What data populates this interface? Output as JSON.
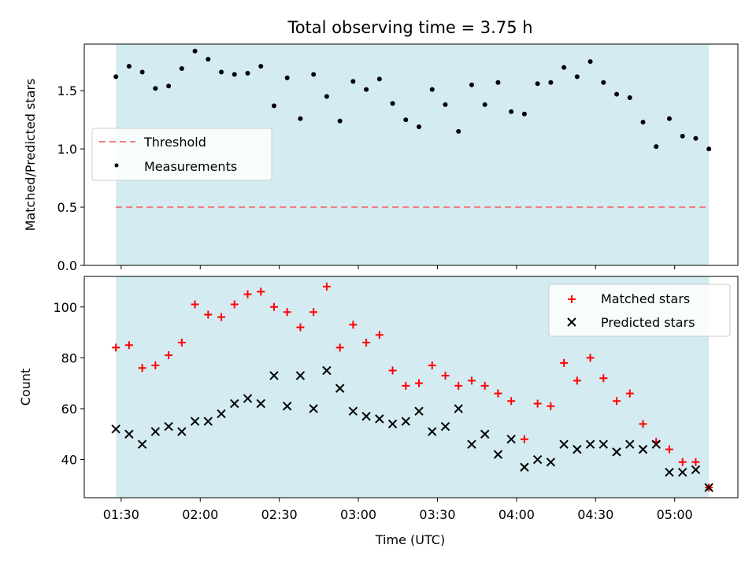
{
  "figure": {
    "title": "Total observing time = 3.75 h",
    "xlabel": "Time (UTC)"
  },
  "chart_data": [
    {
      "type": "scatter",
      "panel": "top",
      "ylabel": "Matched/Predicted stars",
      "xlim": [
        "01:16",
        "05:24"
      ],
      "ylim": [
        0,
        1.9
      ],
      "yticks": [
        0.0,
        0.5,
        1.0,
        1.5
      ],
      "ytick_labels": [
        "0.0",
        "0.5",
        "1.0",
        "1.5"
      ],
      "shaded_span": [
        "01:28",
        "05:13"
      ],
      "shade_color": "#add8e6",
      "legend_position": "center-left",
      "threshold": {
        "name": "Threshold",
        "value": 0.5,
        "color": "#f08080"
      },
      "series": [
        {
          "name": "Measurements",
          "color": "#000000",
          "marker": "dot",
          "x": [
            "01:28",
            "01:33",
            "01:38",
            "01:43",
            "01:48",
            "01:53",
            "01:58",
            "02:03",
            "02:08",
            "02:13",
            "02:18",
            "02:23",
            "02:28",
            "02:33",
            "02:38",
            "02:43",
            "02:48",
            "02:53",
            "02:58",
            "03:03",
            "03:08",
            "03:13",
            "03:18",
            "03:23",
            "03:28",
            "03:33",
            "03:38",
            "03:43",
            "03:48",
            "03:53",
            "03:58",
            "04:03",
            "04:08",
            "04:13",
            "04:18",
            "04:23",
            "04:28",
            "04:33",
            "04:38",
            "04:43",
            "04:48",
            "04:53",
            "04:58",
            "05:03",
            "05:08",
            "05:13"
          ],
          "y": [
            1.62,
            1.71,
            1.66,
            1.52,
            1.54,
            1.69,
            1.84,
            1.77,
            1.66,
            1.64,
            1.65,
            1.71,
            1.37,
            1.61,
            1.26,
            1.64,
            1.45,
            1.24,
            1.58,
            1.51,
            1.6,
            1.39,
            1.25,
            1.19,
            1.51,
            1.38,
            1.15,
            1.55,
            1.38,
            1.57,
            1.32,
            1.3,
            1.56,
            1.57,
            1.7,
            1.62,
            1.75,
            1.57,
            1.47,
            1.44,
            1.23,
            1.02,
            1.26,
            1.11,
            1.09,
            1.0
          ]
        }
      ]
    },
    {
      "type": "scatter",
      "panel": "bottom",
      "ylabel": "Count",
      "xlim": [
        "01:16",
        "05:24"
      ],
      "ylim": [
        25,
        112
      ],
      "yticks": [
        40,
        60,
        80,
        100
      ],
      "ytick_labels": [
        "40",
        "60",
        "80",
        "100"
      ],
      "xtick_labels": [
        "01:30",
        "02:00",
        "02:30",
        "03:00",
        "03:30",
        "04:00",
        "04:30",
        "05:00"
      ],
      "shaded_span": [
        "01:28",
        "05:13"
      ],
      "shade_color": "#add8e6",
      "legend_position": "top-right",
      "series": [
        {
          "name": "Matched stars",
          "color": "#ff0000",
          "marker": "plus",
          "x": [
            "01:28",
            "01:33",
            "01:38",
            "01:43",
            "01:48",
            "01:53",
            "01:58",
            "02:03",
            "02:08",
            "02:13",
            "02:18",
            "02:23",
            "02:28",
            "02:33",
            "02:38",
            "02:43",
            "02:48",
            "02:53",
            "02:58",
            "03:03",
            "03:08",
            "03:13",
            "03:18",
            "03:23",
            "03:28",
            "03:33",
            "03:38",
            "03:43",
            "03:48",
            "03:53",
            "03:58",
            "04:03",
            "04:08",
            "04:13",
            "04:18",
            "04:23",
            "04:28",
            "04:33",
            "04:38",
            "04:43",
            "04:48",
            "04:53",
            "04:58",
            "05:03",
            "05:08",
            "05:13"
          ],
          "y": [
            84,
            85,
            76,
            77,
            81,
            86,
            101,
            97,
            96,
            101,
            105,
            106,
            100,
            98,
            92,
            98,
            108,
            84,
            93,
            86,
            89,
            75,
            69,
            70,
            77,
            73,
            69,
            71,
            69,
            66,
            63,
            48,
            62,
            61,
            78,
            71,
            80,
            72,
            63,
            66,
            54,
            47,
            44,
            39,
            39,
            29
          ]
        },
        {
          "name": "Predicted stars",
          "color": "#000000",
          "marker": "x",
          "x": [
            "01:28",
            "01:33",
            "01:38",
            "01:43",
            "01:48",
            "01:53",
            "01:58",
            "02:03",
            "02:08",
            "02:13",
            "02:18",
            "02:23",
            "02:28",
            "02:33",
            "02:38",
            "02:43",
            "02:48",
            "02:53",
            "02:58",
            "03:03",
            "03:08",
            "03:13",
            "03:18",
            "03:23",
            "03:28",
            "03:33",
            "03:38",
            "03:43",
            "03:48",
            "03:53",
            "03:58",
            "04:03",
            "04:08",
            "04:13",
            "04:18",
            "04:23",
            "04:28",
            "04:33",
            "04:38",
            "04:43",
            "04:48",
            "04:53",
            "04:58",
            "05:03",
            "05:08",
            "05:13"
          ],
          "y": [
            52,
            50,
            46,
            51,
            53,
            51,
            55,
            55,
            58,
            62,
            64,
            62,
            73,
            61,
            73,
            60,
            75,
            68,
            59,
            57,
            56,
            54,
            55,
            59,
            51,
            53,
            60,
            46,
            50,
            42,
            48,
            37,
            40,
            39,
            46,
            44,
            46,
            46,
            43,
            46,
            44,
            46,
            35,
            35,
            36,
            29
          ]
        }
      ]
    }
  ]
}
